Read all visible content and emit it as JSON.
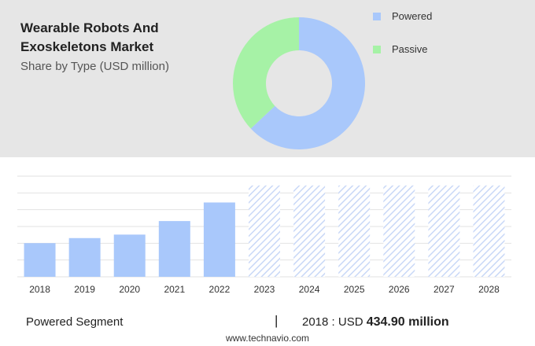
{
  "header": {
    "title": "Wearable Robots And Exoskeletons Market",
    "subtitle": "Share by Type (USD million)"
  },
  "donut": {
    "segments": [
      {
        "label": "Powered",
        "share": 63,
        "color": "#a9c8fb"
      },
      {
        "label": "Passive",
        "share": 37,
        "color": "#a6f2a6"
      }
    ]
  },
  "chart_data": {
    "type": "bar",
    "categories": [
      "2018",
      "2019",
      "2020",
      "2021",
      "2022",
      "2023",
      "2024",
      "2025",
      "2026",
      "2027",
      "2028"
    ],
    "values": [
      434.9,
      500,
      545,
      720,
      960,
      1180,
      1180,
      1180,
      1180,
      1180,
      1180
    ],
    "forecast_from_index": 5,
    "ylim": [
      0,
      1300
    ],
    "grid": true,
    "bar_color": "#a9c8fb",
    "forecast_color": "#c9d8f7"
  },
  "footer": {
    "segment_label": "Powered Segment",
    "divider": "|",
    "year_prefix": "2018 : USD ",
    "value": "434.90 million",
    "source": "www.technavio.com"
  }
}
